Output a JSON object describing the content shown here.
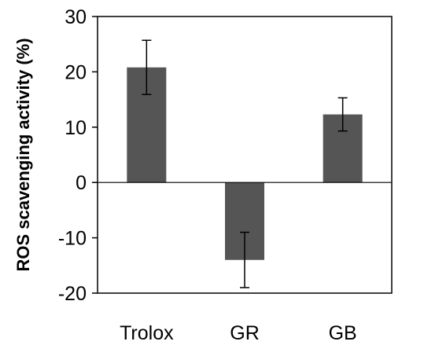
{
  "chart_data": {
    "type": "bar",
    "title": "",
    "xlabel": "",
    "ylabel": "ROS scavenging activity (%)",
    "categories": [
      "Trolox",
      "GR",
      "GB"
    ],
    "series": [
      {
        "values": [
          20.8,
          -14.0,
          12.3
        ],
        "error": [
          4.9,
          5.0,
          3.0
        ]
      }
    ],
    "ylim": [
      -20,
      30
    ],
    "yticks": [
      30,
      20,
      10,
      0,
      -10,
      -20
    ],
    "grid": false,
    "legend": "none",
    "colors": {
      "bar": "#555555",
      "axis": "#000000",
      "background": "#ffffff"
    }
  }
}
